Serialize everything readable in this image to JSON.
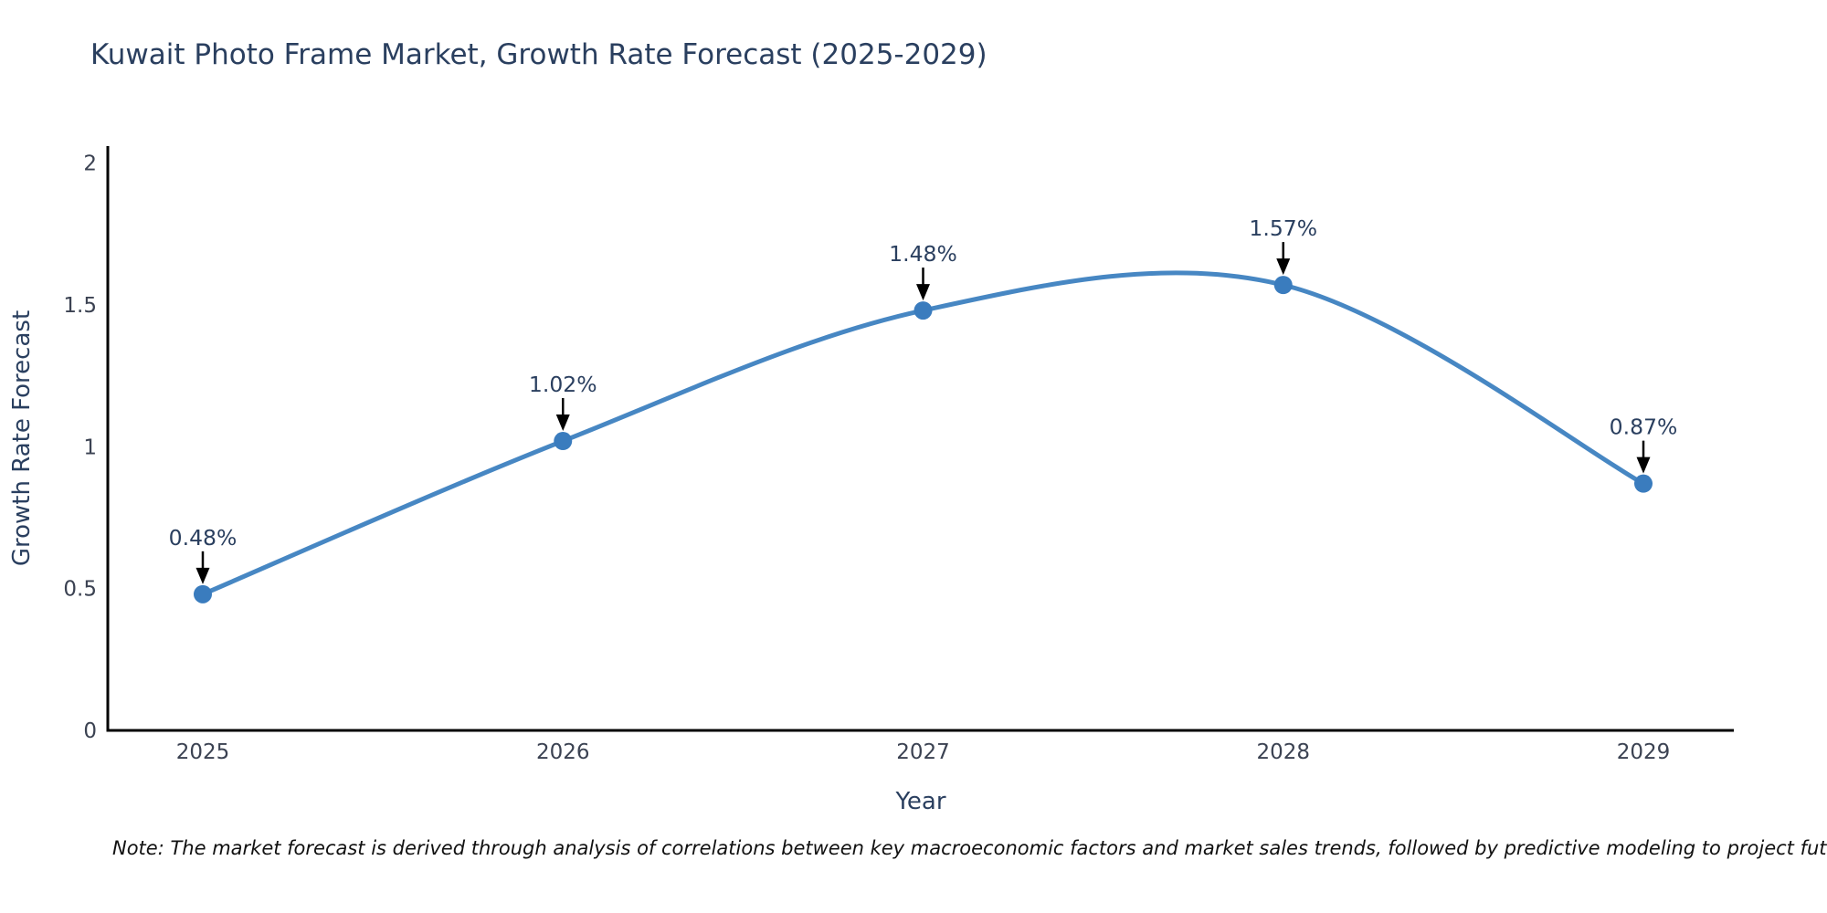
{
  "title": "Kuwait Photo Frame Market, Growth Rate Forecast (2025-2029)",
  "note": "Note: The market forecast is derived through analysis of correlations between key macroeconomic factors and market sales trends, followed by predictive modeling to project future sales",
  "chart_data": {
    "type": "line",
    "title": "Kuwait Photo Frame Market, Growth Rate Forecast (2025-2029)",
    "categories": [
      "2025",
      "2026",
      "2027",
      "2028",
      "2029"
    ],
    "series": [
      {
        "name": "Growth Rate Forecast",
        "values": [
          0.48,
          1.02,
          1.48,
          1.57,
          0.87
        ]
      }
    ],
    "annotations": [
      "0.48%",
      "1.02%",
      "1.48%",
      "1.57%",
      "0.87%"
    ],
    "xlabel": "Year",
    "ylabel": "Growth Rate Forecast",
    "yticks": [
      0,
      0.5,
      1,
      1.5,
      2
    ],
    "ytick_labels": [
      "0",
      "0.5",
      "1",
      "1.5",
      "2"
    ],
    "ylim": [
      0,
      2.06
    ],
    "grid": false,
    "legend_position": "none",
    "line_shape": "spline",
    "marker": "circle",
    "colors": {
      "line": "#4787c3",
      "marker": "#3a7cbe",
      "axis": "#000000",
      "arrow": "#000000",
      "title_text": "#2a3f5f",
      "tick_text": "#3b4252",
      "annotation_text": "#2a3f5f",
      "note_text": "#111111",
      "background": "#ffffff"
    }
  }
}
